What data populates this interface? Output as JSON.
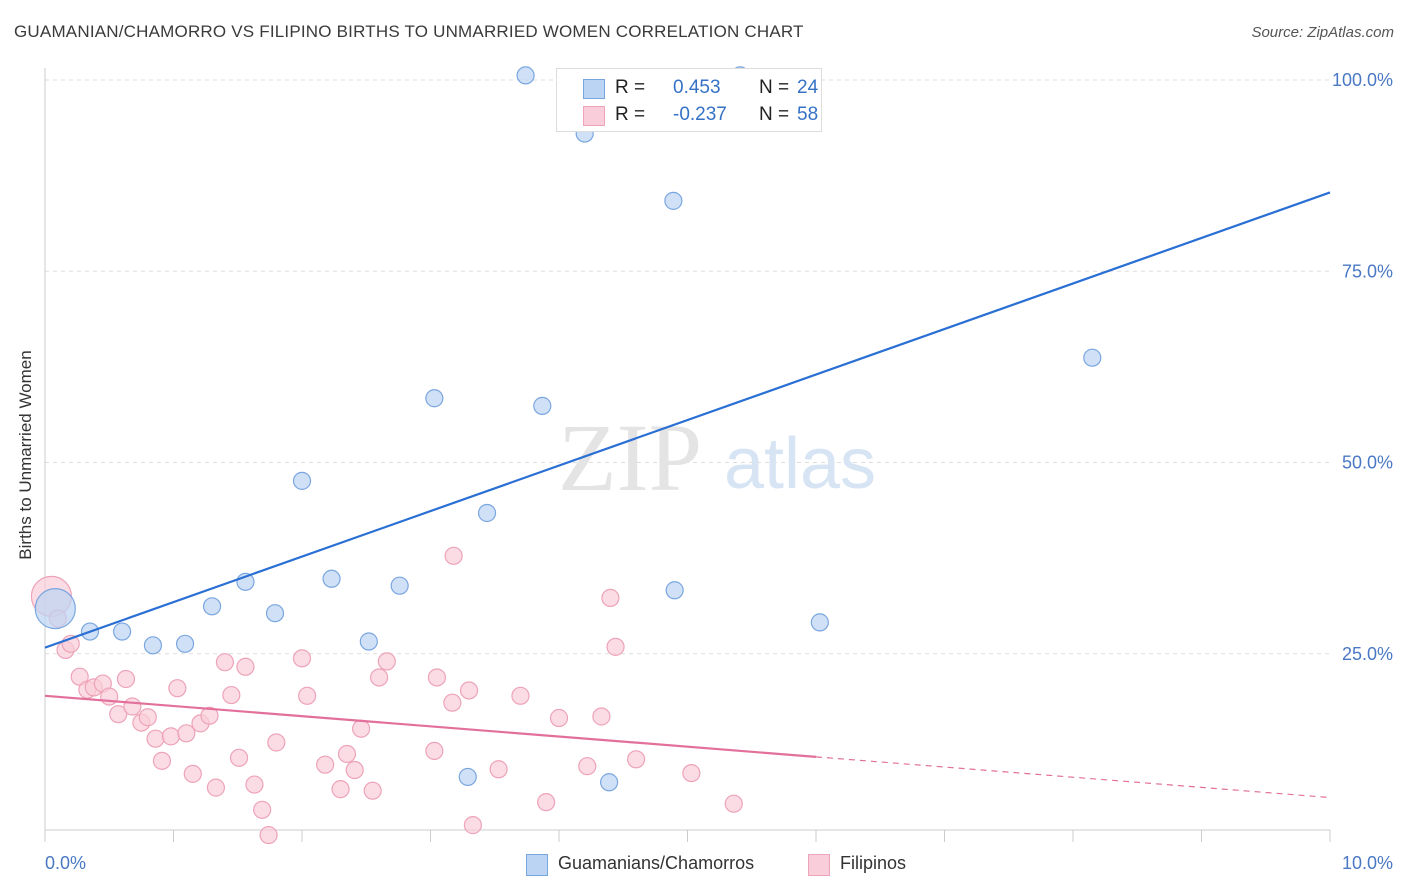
{
  "header": {
    "title": "GUAMANIAN/CHAMORRO VS FILIPINO BIRTHS TO UNMARRIED WOMEN CORRELATION CHART",
    "source": "Source: ZipAtlas.com"
  },
  "watermark": {
    "zip": "ZIP",
    "atlas": "atlas"
  },
  "stats": [
    {
      "r_label": "R =",
      "r_value": "0.453",
      "n_label": "N =",
      "n_value": "24"
    },
    {
      "r_label": "R =",
      "r_value": "-0.237",
      "n_label": "N =",
      "n_value": "58"
    }
  ],
  "legend": {
    "blue": "Guamanians/Chamorros",
    "pink": "Filipinos"
  },
  "colors": {
    "blue_fill": "#bcd4f4",
    "blue_stroke": "#7aa6e0",
    "blue_line": "#2a6fd4",
    "pink_fill": "#f9cdd9",
    "pink_stroke": "#eda3b9",
    "pink_line": "#e2709a",
    "tick_label": "#4a78c4",
    "grid": "#dddddd"
  },
  "chart_data": {
    "type": "scatter",
    "title": "GUAMANIAN/CHAMORRO VS FILIPINO BIRTHS TO UNMARRIED WOMEN CORRELATION CHART",
    "xlabel": "",
    "ylabel": "Births to Unmarried Women",
    "xlim": [
      0,
      10
    ],
    "ylim": [
      0,
      100
    ],
    "x_tick_labels": [
      "0.0%",
      "10.0%"
    ],
    "y_ticks": [
      25,
      50,
      75,
      100
    ],
    "y_tick_labels": [
      "25.0%",
      "50.0%",
      "75.0%",
      "100.0%"
    ],
    "series": [
      {
        "name": "Guamanians/Chamorros",
        "color": "#bcd4f4",
        "r": 0.453,
        "n": 24,
        "trend": {
          "x": [
            0,
            10
          ],
          "y": [
            25.8,
            85.3
          ],
          "dashed_from": null
        },
        "points": [
          {
            "x": 0.08,
            "y": 30.9,
            "big": true
          },
          {
            "x": 0.35,
            "y": 27.9
          },
          {
            "x": 0.6,
            "y": 27.9
          },
          {
            "x": 0.84,
            "y": 26.1
          },
          {
            "x": 1.09,
            "y": 26.3
          },
          {
            "x": 1.3,
            "y": 31.2
          },
          {
            "x": 1.56,
            "y": 34.4
          },
          {
            "x": 1.79,
            "y": 30.3
          },
          {
            "x": 2.0,
            "y": 47.6
          },
          {
            "x": 2.23,
            "y": 34.8
          },
          {
            "x": 2.52,
            "y": 26.6
          },
          {
            "x": 2.76,
            "y": 33.9
          },
          {
            "x": 3.03,
            "y": 58.4
          },
          {
            "x": 3.29,
            "y": 8.9
          },
          {
            "x": 3.44,
            "y": 43.4
          },
          {
            "x": 3.74,
            "y": 100.6
          },
          {
            "x": 3.87,
            "y": 57.4
          },
          {
            "x": 4.2,
            "y": 93.0
          },
          {
            "x": 4.39,
            "y": 8.2
          },
          {
            "x": 4.9,
            "y": 33.3
          },
          {
            "x": 4.89,
            "y": 84.2
          },
          {
            "x": 5.41,
            "y": 100.6
          },
          {
            "x": 6.03,
            "y": 29.1
          },
          {
            "x": 8.15,
            "y": 63.7
          }
        ]
      },
      {
        "name": "Filipinos",
        "color": "#f9cdd9",
        "r": -0.237,
        "n": 58,
        "trend": {
          "x": [
            0,
            10
          ],
          "y": [
            19.5,
            6.2
          ],
          "dashed_from": 6.0
        },
        "points": [
          {
            "x": 0.05,
            "y": 32.5,
            "big": true
          },
          {
            "x": 0.1,
            "y": 29.6
          },
          {
            "x": 0.16,
            "y": 25.5
          },
          {
            "x": 0.2,
            "y": 26.3
          },
          {
            "x": 0.27,
            "y": 22.0
          },
          {
            "x": 0.33,
            "y": 20.3
          },
          {
            "x": 0.38,
            "y": 20.6
          },
          {
            "x": 0.45,
            "y": 21.1
          },
          {
            "x": 0.5,
            "y": 19.4
          },
          {
            "x": 0.57,
            "y": 17.1
          },
          {
            "x": 0.63,
            "y": 21.7
          },
          {
            "x": 0.68,
            "y": 18.1
          },
          {
            "x": 0.75,
            "y": 16.0
          },
          {
            "x": 0.8,
            "y": 16.7
          },
          {
            "x": 0.86,
            "y": 13.9
          },
          {
            "x": 0.91,
            "y": 11.0
          },
          {
            "x": 0.98,
            "y": 14.2
          },
          {
            "x": 1.03,
            "y": 20.5
          },
          {
            "x": 1.1,
            "y": 14.6
          },
          {
            "x": 1.15,
            "y": 9.3
          },
          {
            "x": 1.21,
            "y": 15.9
          },
          {
            "x": 1.28,
            "y": 16.9
          },
          {
            "x": 1.33,
            "y": 7.5
          },
          {
            "x": 1.4,
            "y": 23.9
          },
          {
            "x": 1.45,
            "y": 19.6
          },
          {
            "x": 1.51,
            "y": 11.4
          },
          {
            "x": 1.56,
            "y": 23.3
          },
          {
            "x": 1.63,
            "y": 7.9
          },
          {
            "x": 1.69,
            "y": 4.6
          },
          {
            "x": 1.74,
            "y": 1.3
          },
          {
            "x": 1.8,
            "y": 13.4
          },
          {
            "x": 2.0,
            "y": 24.4
          },
          {
            "x": 2.04,
            "y": 19.5
          },
          {
            "x": 2.18,
            "y": 10.5
          },
          {
            "x": 2.3,
            "y": 7.3
          },
          {
            "x": 2.35,
            "y": 11.9
          },
          {
            "x": 2.41,
            "y": 9.8
          },
          {
            "x": 2.46,
            "y": 15.2
          },
          {
            "x": 2.55,
            "y": 7.1
          },
          {
            "x": 2.6,
            "y": 21.9
          },
          {
            "x": 2.66,
            "y": 24.0
          },
          {
            "x": 3.03,
            "y": 12.3
          },
          {
            "x": 3.05,
            "y": 21.9
          },
          {
            "x": 3.17,
            "y": 18.6
          },
          {
            "x": 3.18,
            "y": 37.8
          },
          {
            "x": 3.3,
            "y": 20.2
          },
          {
            "x": 3.33,
            "y": 2.6
          },
          {
            "x": 3.53,
            "y": 9.9
          },
          {
            "x": 3.7,
            "y": 19.5
          },
          {
            "x": 3.9,
            "y": 5.6
          },
          {
            "x": 4.0,
            "y": 16.6
          },
          {
            "x": 4.22,
            "y": 10.3
          },
          {
            "x": 4.33,
            "y": 16.8
          },
          {
            "x": 4.4,
            "y": 32.3
          },
          {
            "x": 4.44,
            "y": 25.9
          },
          {
            "x": 4.6,
            "y": 11.2
          },
          {
            "x": 5.03,
            "y": 9.4
          },
          {
            "x": 5.36,
            "y": 5.4
          }
        ]
      }
    ]
  }
}
